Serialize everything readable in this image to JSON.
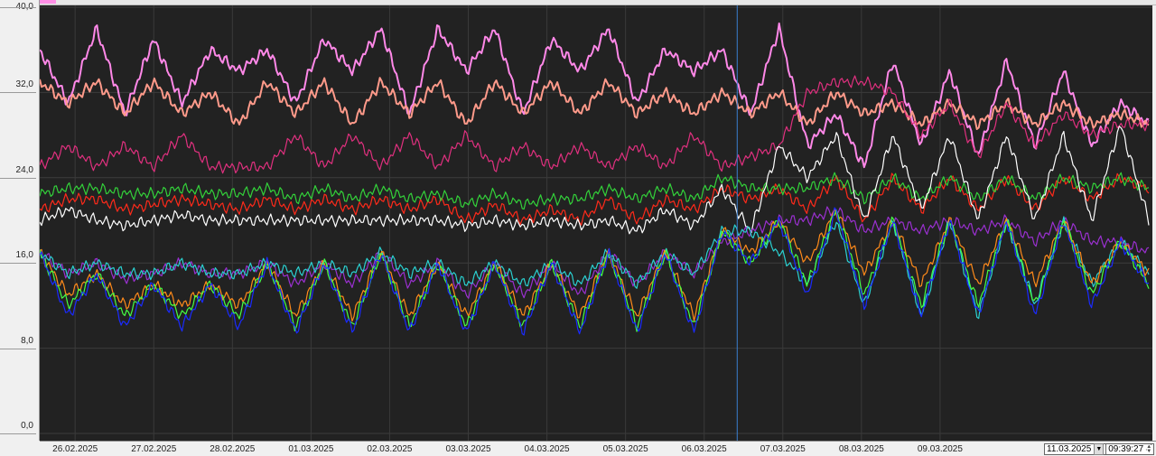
{
  "chart_data": {
    "type": "line",
    "title": "",
    "xlabel": "",
    "ylabel": "",
    "ylim": [
      0,
      40
    ],
    "y_ticks": [
      "40,0",
      "32,0",
      "24,0",
      "16,0",
      "8,0",
      "0,0"
    ],
    "y_tick_values": [
      40,
      32,
      24,
      16,
      8,
      0
    ],
    "x_ticks": [
      "26.02.2025",
      "27.02.2025",
      "28.02.2025",
      "01.03.2025",
      "02.03.2025",
      "03.03.2025",
      "04.03.2025",
      "05.03.2025",
      "06.03.2025",
      "07.03.2025",
      "08.03.2025",
      "09.03.2025"
    ],
    "x_range_days": [
      -0.45,
      13.7
    ],
    "cursor_day": 8.42,
    "grid": true,
    "background": "#222222",
    "series": [
      {
        "color": "#ff88e8",
        "values": [
          36,
          31,
          38,
          30,
          37,
          31,
          36,
          34,
          36,
          31,
          37,
          34,
          38,
          30,
          38,
          34,
          38,
          30,
          37,
          34,
          38,
          31,
          36,
          34,
          36,
          30,
          38,
          27,
          30,
          25,
          35,
          27,
          34,
          26,
          35,
          27,
          34,
          27,
          31,
          29
        ]
      },
      {
        "color": "#ff9a8a",
        "values": [
          33,
          31,
          33,
          30,
          33,
          30,
          32,
          29,
          33,
          30,
          33,
          29,
          33,
          30,
          33,
          29,
          33,
          30,
          33,
          30,
          33,
          30,
          32,
          30,
          32,
          30,
          32,
          29,
          32,
          30,
          31,
          29,
          31,
          29,
          31,
          29,
          31,
          29,
          30,
          29
        ]
      },
      {
        "color": "#e0307f",
        "values": [
          25,
          27,
          25,
          27,
          25,
          28,
          25,
          25,
          25,
          28,
          25,
          28,
          25,
          28,
          25,
          28,
          25,
          27,
          25,
          27,
          25,
          27,
          25,
          28,
          25,
          26,
          27,
          32,
          33,
          33,
          32,
          28,
          31,
          26,
          31,
          27,
          30,
          28,
          29,
          29
        ]
      },
      {
        "color": "#ff2a1a",
        "values": [
          21,
          22,
          22,
          21,
          21.5,
          22,
          21.5,
          21,
          22,
          21,
          22,
          21,
          22,
          21,
          22,
          20,
          21.5,
          20,
          21,
          20,
          22,
          20,
          22,
          21,
          23,
          22,
          23,
          21,
          24,
          20,
          24,
          21,
          24,
          21,
          24,
          21,
          24,
          22,
          24,
          23
        ]
      },
      {
        "color": "#33d23a",
        "values": [
          22.5,
          23,
          23,
          22.5,
          22.5,
          23,
          22.5,
          22.5,
          23,
          22,
          23,
          22,
          23,
          22,
          22.5,
          21.5,
          22.5,
          21.5,
          22,
          22,
          23,
          22,
          23,
          22,
          24,
          23,
          23,
          23,
          24,
          22,
          24,
          22,
          24,
          22,
          24,
          22,
          24,
          23,
          24,
          23
        ]
      },
      {
        "color": "#ffffff",
        "values": [
          20,
          21,
          20,
          19.5,
          20,
          20.5,
          20,
          20,
          20,
          20,
          20,
          20,
          20,
          20,
          20,
          19.5,
          20,
          19.5,
          20,
          19.5,
          20,
          19,
          21,
          19.5,
          23,
          19,
          27,
          24,
          28,
          20,
          28,
          21,
          28,
          20,
          28,
          20,
          28,
          20,
          29,
          20
        ]
      },
      {
        "color": "#9a30d0",
        "values": [
          17,
          15,
          16,
          14.5,
          15,
          16,
          15,
          15,
          16,
          14,
          16,
          14,
          17,
          14,
          16,
          13,
          16,
          13,
          16,
          13,
          17,
          14,
          17,
          15,
          18,
          19,
          20,
          20,
          21,
          19,
          20,
          19,
          20,
          19,
          20,
          18,
          20,
          18,
          18,
          17
        ]
      },
      {
        "color": "#2ad0d0",
        "values": [
          17,
          15,
          16,
          15,
          15,
          16,
          15,
          15,
          16,
          15,
          16,
          15,
          17,
          15,
          16,
          14,
          16,
          14,
          16,
          14,
          17,
          14,
          17,
          15,
          19,
          19,
          17,
          14,
          20,
          12,
          20,
          11,
          20,
          11,
          20,
          12,
          20,
          14,
          18,
          15
        ]
      },
      {
        "color": "#ff8a1a",
        "values": [
          17,
          13,
          15,
          12,
          14,
          12,
          14,
          12,
          16,
          11,
          16,
          11,
          17,
          11,
          16,
          11,
          16,
          11,
          16,
          11,
          17,
          11,
          17,
          11,
          19,
          17,
          20,
          16,
          21,
          15,
          20,
          14,
          20,
          14,
          20,
          14,
          20,
          14,
          18,
          15
        ]
      },
      {
        "color": "#44ff44",
        "values": [
          17,
          12,
          15,
          11,
          14,
          11,
          14,
          11,
          16,
          10,
          16,
          10,
          17,
          10,
          16,
          10,
          16,
          10,
          16,
          10,
          17,
          10,
          17,
          10,
          19,
          16,
          20,
          14,
          21,
          13,
          20,
          12,
          20,
          12,
          20,
          12,
          20,
          13,
          18,
          14
        ]
      },
      {
        "color": "#1a2aff",
        "values": [
          17,
          11,
          15,
          10,
          14,
          10,
          14,
          10,
          16,
          9.5,
          16,
          9.5,
          17,
          9.5,
          16,
          9.5,
          16,
          9.5,
          16,
          9.5,
          17,
          9.5,
          17,
          9.5,
          19,
          16,
          20,
          13,
          21,
          12,
          20,
          11,
          20,
          11,
          20,
          11,
          20,
          12,
          18,
          14
        ]
      }
    ]
  },
  "controls": {
    "date_value": "11.03.2025",
    "time_value": "09:39:27"
  }
}
